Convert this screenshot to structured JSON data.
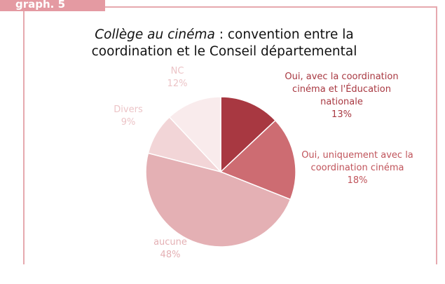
{
  "tab": "graph. 5",
  "chart_data": {
    "type": "pie",
    "title": {
      "emphasis": "Collège au cinéma",
      "text": ": convention entre la coordination et le Conseil départemental"
    },
    "categories": [
      "Oui, avec la coordination cinéma et l'Éducation nationale",
      "Oui, uniquement avec la coordination cinéma",
      "aucune",
      "Divers",
      "NC"
    ],
    "values": [
      13,
      18,
      48,
      9,
      12
    ],
    "value_labels": [
      "13%",
      "18%",
      "48%",
      "9%",
      "12%"
    ],
    "colors": [
      "#a83841",
      "#cd6c72",
      "#e4b0b4",
      "#f2d5d7",
      "#f9ebec"
    ],
    "label_colors": [
      "#a83841",
      "#c0545b",
      "#e4b0b4",
      "#ecc4c7",
      "#ecc4c7"
    ]
  }
}
